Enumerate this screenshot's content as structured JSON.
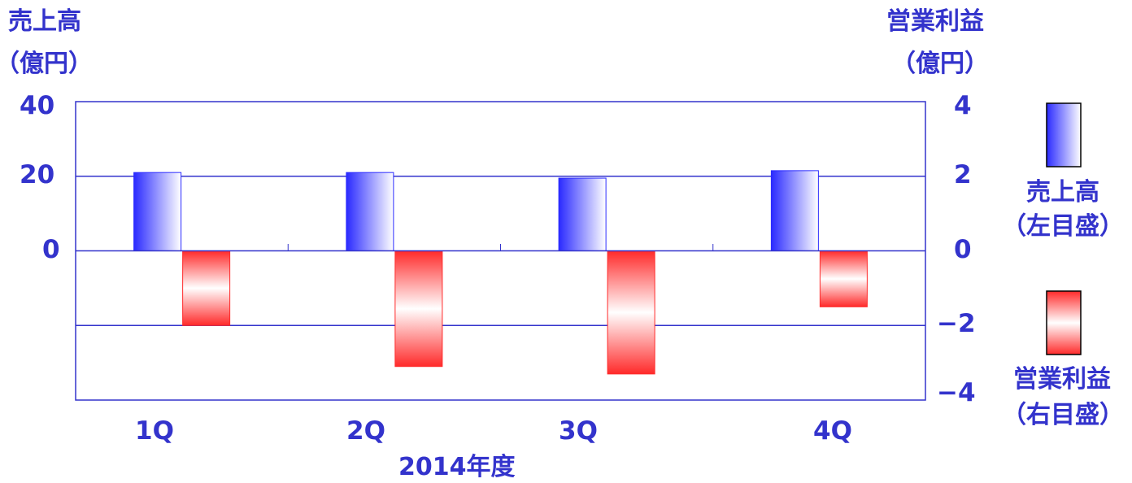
{
  "colors": {
    "text": "#3333cc",
    "axis": "#3333cc",
    "sales_bar": "#2a2aff",
    "profit_bar": "#ff2a2a"
  },
  "left_axis": {
    "title": "売上高",
    "unit": "（億円）"
  },
  "right_axis": {
    "title": "営業利益",
    "unit": "（億円）"
  },
  "legend": {
    "sales": {
      "label": "売上高",
      "note": "（左目盛）"
    },
    "profit": {
      "label": "営業利益",
      "note": "（右目盛）"
    }
  },
  "chart_data": {
    "type": "bar",
    "xlabel": "2014年度",
    "categories": [
      "1Q",
      "2Q",
      "3Q",
      "4Q"
    ],
    "series": [
      {
        "name": "売上高",
        "axis": "left",
        "values": [
          21,
          21,
          19.5,
          21.5
        ]
      },
      {
        "name": "営業利益",
        "axis": "right",
        "values": [
          -2.0,
          -3.1,
          -3.3,
          -1.5
        ]
      }
    ],
    "left_ylim": [
      -40,
      40
    ],
    "right_ylim": [
      -4,
      4
    ],
    "left_ticks": [
      "40",
      "20",
      "0"
    ],
    "right_ticks": [
      "4",
      "2",
      "0",
      "−2",
      "−4"
    ],
    "grid": true
  }
}
